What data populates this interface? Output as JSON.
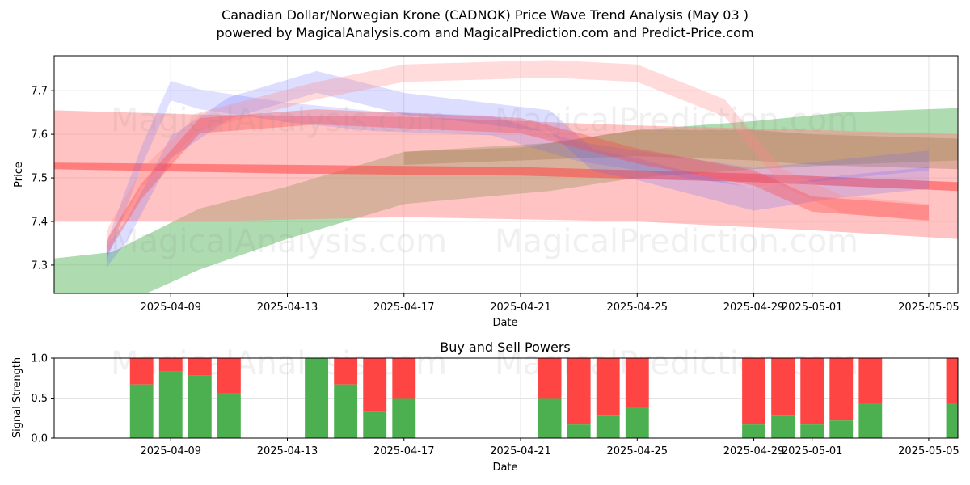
{
  "title_line1": "Canadian Dollar/Norwegian Krone (CADNOK) Price Wave Trend Analysis (May 03 )",
  "title_line2": "powered by MagicalAnalysis.com and MagicalPrediction.com and Predict-Price.com",
  "watermarks": [
    "MagicalAnalysis.com",
    "MagicalPrediction.com"
  ],
  "colors": {
    "green": "#4caf50",
    "red": "#ff4444",
    "blue": "#6666ff",
    "salmon": "#ff8888",
    "brown": "#a07850"
  },
  "chart_data": [
    {
      "type": "area",
      "title": "",
      "xlabel": "Date",
      "ylabel": "Price",
      "x_ticks": [
        "2025-04-09",
        "2025-04-13",
        "2025-04-17",
        "2025-04-21",
        "2025-04-25",
        "2025-04-29",
        "2025-05-01",
        "2025-05-05"
      ],
      "y_ticks": [
        7.3,
        7.4,
        7.5,
        7.6,
        7.7
      ],
      "xlim": [
        "2025-04-05",
        "2025-05-06"
      ],
      "ylim": [
        7.235,
        7.78
      ],
      "grid": true,
      "series": [
        {
          "color": "green",
          "alpha": 0.45,
          "x": [
            "2025-04-05",
            "2025-04-07",
            "2025-04-10",
            "2025-04-13",
            "2025-04-17",
            "2025-04-22",
            "2025-04-25",
            "2025-04-29",
            "2025-05-02",
            "2025-05-06"
          ],
          "upper": [
            7.315,
            7.33,
            7.43,
            7.48,
            7.56,
            7.58,
            7.61,
            7.63,
            7.65,
            7.66
          ],
          "lower": [
            7.21,
            7.2,
            7.29,
            7.36,
            7.44,
            7.47,
            7.5,
            7.52,
            7.53,
            7.54
          ]
        },
        {
          "color": "salmon",
          "alpha": 0.5,
          "x": [
            "2025-04-05",
            "2025-04-10",
            "2025-04-17",
            "2025-04-25",
            "2025-05-01",
            "2025-05-06"
          ],
          "upper": [
            7.655,
            7.645,
            7.64,
            7.62,
            7.61,
            7.6
          ],
          "lower": [
            7.4,
            7.4,
            7.41,
            7.4,
            7.38,
            7.36
          ]
        },
        {
          "color": "red",
          "alpha": 0.55,
          "x": [
            "2025-04-05",
            "2025-04-13",
            "2025-04-21",
            "2025-04-29",
            "2025-05-06"
          ],
          "upper": [
            7.535,
            7.53,
            7.525,
            7.51,
            7.49
          ],
          "lower": [
            7.52,
            7.51,
            7.505,
            7.49,
            7.47
          ]
        },
        {
          "color": "brown",
          "alpha": 0.35,
          "x": [
            "2025-04-17",
            "2025-04-21",
            "2025-04-25",
            "2025-04-29",
            "2025-05-01",
            "2025-05-06"
          ],
          "upper": [
            7.56,
            7.57,
            7.61,
            7.61,
            7.6,
            7.59
          ],
          "lower": [
            7.53,
            7.54,
            7.55,
            7.54,
            7.53,
            7.52
          ]
        },
        {
          "color": "blue",
          "alpha": 0.22,
          "x": [
            "2025-04-06.8",
            "2025-04-07.5",
            "2025-04-09",
            "2025-04-11",
            "2025-04-14",
            "2025-04-17",
            "2025-04-22",
            "2025-04-23.5",
            "2025-04-25",
            "2025-04-29",
            "2025-05-02",
            "2025-05-05"
          ],
          "center": [
            7.32,
            7.38,
            7.57,
            7.66,
            7.72,
            7.67,
            7.63,
            7.54,
            7.52,
            7.45,
            7.48,
            7.5
          ],
          "width": 0.05
        },
        {
          "color": "blue",
          "alpha": 0.2,
          "x": [
            "2025-04-06.8",
            "2025-04-08",
            "2025-04-09",
            "2025-04-10",
            "2025-04-13",
            "2025-04-16",
            "2025-04-20",
            "2025-04-23",
            "2025-04-25",
            "2025-04-29",
            "2025-05-02",
            "2025-05-05"
          ],
          "center": [
            7.33,
            7.55,
            7.7,
            7.68,
            7.65,
            7.63,
            7.62,
            7.56,
            7.54,
            7.5,
            7.52,
            7.54
          ],
          "width": 0.045
        },
        {
          "color": "salmon",
          "alpha": 0.3,
          "x": [
            "2025-04-06.8",
            "2025-04-08",
            "2025-04-10",
            "2025-04-14",
            "2025-04-17",
            "2025-04-22",
            "2025-04-25",
            "2025-04-28",
            "2025-04-30",
            "2025-05-02",
            "2025-05-05"
          ],
          "center": [
            7.36,
            7.5,
            7.63,
            7.7,
            7.74,
            7.75,
            7.74,
            7.66,
            7.5,
            7.44,
            7.42
          ],
          "width": 0.04
        },
        {
          "color": "red",
          "alpha": 0.35,
          "x": [
            "2025-04-06.8",
            "2025-04-08",
            "2025-04-10",
            "2025-04-14",
            "2025-04-21",
            "2025-04-25",
            "2025-04-29",
            "2025-05-01",
            "2025-05-05"
          ],
          "center": [
            7.34,
            7.47,
            7.62,
            7.64,
            7.62,
            7.55,
            7.5,
            7.44,
            7.42
          ],
          "width": 0.035
        }
      ]
    },
    {
      "type": "bar",
      "title": "Buy and Sell Powers",
      "xlabel": "Date",
      "ylabel": "Signal Strength",
      "x_ticks": [
        "2025-04-09",
        "2025-04-13",
        "2025-04-17",
        "2025-04-21",
        "2025-04-25",
        "2025-04-29",
        "2025-05-01",
        "2025-05-05"
      ],
      "y_ticks": [
        0.0,
        0.5,
        1.0
      ],
      "ylim": [
        0,
        1
      ],
      "grid": true,
      "series_names": [
        "buy",
        "sell"
      ],
      "bars": [
        {
          "date": "2025-04-08",
          "buy": 0.67
        },
        {
          "date": "2025-04-09",
          "buy": 0.83
        },
        {
          "date": "2025-04-10",
          "buy": 0.78
        },
        {
          "date": "2025-04-11",
          "buy": 0.56
        },
        {
          "date": "2025-04-14",
          "buy": 1.0
        },
        {
          "date": "2025-04-15",
          "buy": 0.67
        },
        {
          "date": "2025-04-16",
          "buy": 0.33
        },
        {
          "date": "2025-04-17",
          "buy": 0.5
        },
        {
          "date": "2025-04-22",
          "buy": 0.5
        },
        {
          "date": "2025-04-23",
          "buy": 0.17
        },
        {
          "date": "2025-04-24",
          "buy": 0.28
        },
        {
          "date": "2025-04-25",
          "buy": 0.39
        },
        {
          "date": "2025-04-29",
          "buy": 0.17
        },
        {
          "date": "2025-04-30",
          "buy": 0.28
        },
        {
          "date": "2025-05-01",
          "buy": 0.17
        },
        {
          "date": "2025-05-02",
          "buy": 0.22
        },
        {
          "date": "2025-05-03",
          "buy": 0.44
        },
        {
          "date": "2025-05-06",
          "buy": 0.44
        }
      ]
    }
  ]
}
